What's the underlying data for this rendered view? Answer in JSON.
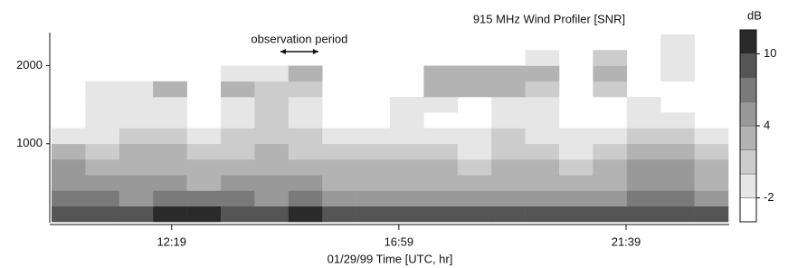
{
  "chart_data": {
    "type": "heatmap",
    "title": "915 MHz Wind Profiler [SNR]",
    "x_label": "01/29/99 Time [UTC, hr]",
    "annotation": {
      "text": "observation period",
      "x": [
        14.55,
        15.33
      ]
    },
    "xlim": [
      9.85,
      23.75
    ],
    "xticks": [
      {
        "value": 12.3167,
        "label": "12:19"
      },
      {
        "value": 16.9833,
        "label": "16:59"
      },
      {
        "value": 21.65,
        "label": "21:39"
      }
    ],
    "ylim": [
      0,
      2400
    ],
    "yticks": [
      1000,
      2000
    ],
    "xbins": [
      9.85,
      10.545,
      11.24,
      11.935,
      12.63,
      13.325,
      14.02,
      14.715,
      15.41,
      16.105,
      16.8,
      17.495,
      18.19,
      18.885,
      19.58,
      20.275,
      20.97,
      21.665,
      22.36,
      23.055,
      23.75
    ],
    "ybins": [
      0,
      200,
      400,
      600,
      800,
      1000,
      1200,
      1400,
      1600,
      1800,
      2000,
      2200,
      2400
    ],
    "values": [
      [
        9,
        9,
        9,
        10,
        10,
        9,
        9,
        10,
        9,
        9,
        9,
        9,
        8,
        9,
        9,
        9,
        9,
        9,
        8,
        9
      ],
      [
        6,
        6,
        5,
        6,
        6,
        6,
        5,
        6,
        5,
        5,
        5,
        5,
        4,
        5,
        5,
        5,
        5,
        6,
        6,
        5
      ],
      [
        4,
        4,
        4,
        4,
        3,
        4,
        4,
        4,
        3,
        3,
        3,
        3,
        2,
        3,
        3,
        2,
        3,
        4,
        5,
        3
      ],
      [
        4,
        3,
        3,
        3,
        2,
        3,
        3,
        3,
        2,
        2,
        2,
        2,
        1,
        2,
        2,
        1,
        2,
        4,
        5,
        3
      ],
      [
        2,
        1,
        2,
        2,
        0,
        1,
        2,
        1,
        0,
        0,
        0,
        0,
        -1,
        1,
        0,
        -1,
        0,
        2,
        3,
        1
      ],
      [
        -2,
        -1,
        0,
        0,
        -2,
        0,
        1,
        0,
        -2,
        -2,
        -1,
        -2,
        -2,
        0,
        -1,
        -2,
        -2,
        0,
        0,
        -2
      ],
      [
        null,
        -2,
        -1,
        -2,
        null,
        -1,
        0,
        -1,
        null,
        null,
        -2,
        null,
        null,
        -1,
        -2,
        null,
        null,
        -2,
        -2,
        null
      ],
      [
        null,
        -2,
        -1,
        -2,
        null,
        -1,
        0,
        -1,
        null,
        null,
        -1,
        -2,
        null,
        -1,
        -2,
        null,
        null,
        -2,
        null,
        null
      ],
      [
        null,
        -2,
        -2,
        2,
        null,
        2,
        0,
        1,
        null,
        null,
        null,
        2,
        2,
        3,
        0,
        null,
        1,
        null,
        null,
        null
      ],
      [
        null,
        null,
        null,
        null,
        null,
        -2,
        -1,
        2,
        null,
        null,
        null,
        3,
        2,
        3,
        2,
        null,
        2,
        null,
        -2,
        null
      ],
      [
        null,
        null,
        null,
        null,
        null,
        null,
        null,
        null,
        null,
        null,
        null,
        null,
        null,
        null,
        -2,
        null,
        0,
        null,
        -2,
        null
      ],
      [
        null,
        null,
        null,
        null,
        null,
        null,
        null,
        null,
        null,
        null,
        null,
        null,
        null,
        null,
        null,
        null,
        null,
        null,
        -2,
        null
      ]
    ],
    "colorbar": {
      "label": "dB",
      "levels": [
        -4,
        -2,
        0,
        2,
        4,
        6,
        8,
        10,
        12
      ],
      "colors": [
        "#ffffff",
        "#e6e6e6",
        "#cccccc",
        "#b3b3b3",
        "#999999",
        "#7a7a7a",
        "#555555",
        "#2a2a2a"
      ],
      "ticks": [
        -2,
        4,
        10
      ]
    }
  }
}
